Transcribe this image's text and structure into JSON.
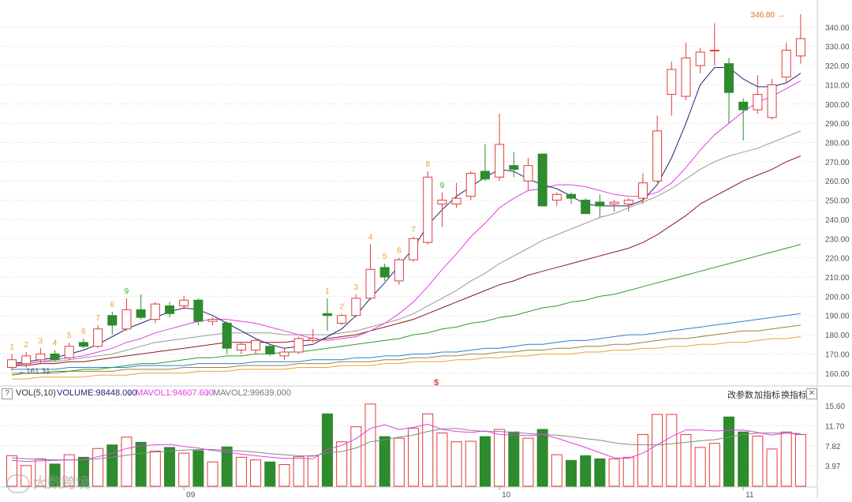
{
  "colors": {
    "up": "#e03c3c",
    "down": "#2e8b2e",
    "ma5": "#23237a",
    "ma10": "#e040e0",
    "ma20": "#999999",
    "ma30": "#8b1a1a",
    "ma60": "#2e9b2e",
    "ma120": "#2f7fd0",
    "ma250": "#a08040",
    "ma_long": "#f0a030",
    "td_up": "#f0a030",
    "td_down": "#22bb22",
    "grid": "#e6e6e6",
    "axis_text": "#555555",
    "vol_ma5": "#e040e0",
    "vol_ma10": "#888888"
  },
  "price_axis": {
    "ticks": [
      "340.00",
      "330.00",
      "320.00",
      "310.00",
      "300.00",
      "290.00",
      "280.00",
      "270.00",
      "260.00",
      "250.00",
      "240.00",
      "230.00",
      "220.00",
      "210.00",
      "200.00",
      "190.00",
      "180.00",
      "170.00",
      "160.00"
    ]
  },
  "vol_axis": {
    "ticks": [
      "15.60",
      "11.70",
      "7.82",
      "3.97"
    ]
  },
  "x_axis": {
    "labels": [
      "09",
      "10",
      "11"
    ]
  },
  "annotations": {
    "high_label": "346.80 →",
    "low_label": "←161.31",
    "marker": "$"
  },
  "vol_header": {
    "title": "VOL(5,10)",
    "volume": "VOLUME:98448.000",
    "mavol1": "MAVOL1:94607.600",
    "mavol2": "MAVOL2:99639.000",
    "btn_params": "改参数",
    "btn_add": "加指标",
    "btn_switch": "换指标",
    "btn_close": "✕",
    "btn_help": "?"
  },
  "watermark": "大数跨境",
  "chart_data": {
    "type": "candlestick",
    "ylim": [
      155,
      350
    ],
    "vol_ylim": [
      0,
      16.5
    ],
    "candles": [
      {
        "o": 163,
        "h": 170,
        "l": 161.31,
        "c": 167
      },
      {
        "o": 165,
        "h": 171,
        "l": 163,
        "c": 169
      },
      {
        "o": 167,
        "h": 173,
        "l": 165,
        "c": 170
      },
      {
        "o": 170,
        "h": 172,
        "l": 166,
        "c": 167
      },
      {
        "o": 168,
        "h": 176,
        "l": 167,
        "c": 174
      },
      {
        "o": 176,
        "h": 178,
        "l": 173,
        "c": 174
      },
      {
        "o": 174,
        "h": 185,
        "l": 173,
        "c": 183
      },
      {
        "o": 190,
        "h": 192,
        "l": 180,
        "c": 185
      },
      {
        "o": 183,
        "h": 199,
        "l": 182,
        "c": 193
      },
      {
        "o": 193,
        "h": 201,
        "l": 188,
        "c": 189
      },
      {
        "o": 188,
        "h": 197,
        "l": 186,
        "c": 196
      },
      {
        "o": 195,
        "h": 197,
        "l": 189,
        "c": 191
      },
      {
        "o": 195,
        "h": 200,
        "l": 193,
        "c": 198
      },
      {
        "o": 198,
        "h": 199,
        "l": 185,
        "c": 187
      },
      {
        "o": 187,
        "h": 189,
        "l": 185,
        "c": 188
      },
      {
        "o": 186,
        "h": 187,
        "l": 170,
        "c": 173
      },
      {
        "o": 172,
        "h": 176,
        "l": 170,
        "c": 175
      },
      {
        "o": 172,
        "h": 178,
        "l": 170,
        "c": 177
      },
      {
        "o": 174,
        "h": 175,
        "l": 169,
        "c": 170
      },
      {
        "o": 169,
        "h": 173,
        "l": 167,
        "c": 171
      },
      {
        "o": 171,
        "h": 179,
        "l": 170,
        "c": 178
      },
      {
        "o": 177,
        "h": 183,
        "l": 176,
        "c": 178
      },
      {
        "o": 191,
        "h": 199,
        "l": 182,
        "c": 190
      },
      {
        "o": 186,
        "h": 191,
        "l": 185,
        "c": 190
      },
      {
        "o": 190,
        "h": 201,
        "l": 189,
        "c": 199
      },
      {
        "o": 199,
        "h": 227,
        "l": 198,
        "c": 214
      },
      {
        "o": 215,
        "h": 217,
        "l": 208,
        "c": 210
      },
      {
        "o": 208,
        "h": 220,
        "l": 206,
        "c": 219
      },
      {
        "o": 219,
        "h": 231,
        "l": 218,
        "c": 230
      },
      {
        "o": 228,
        "h": 265,
        "l": 227,
        "c": 262
      },
      {
        "o": 248,
        "h": 254,
        "l": 236,
        "c": 250
      },
      {
        "o": 248,
        "h": 259,
        "l": 246,
        "c": 251
      },
      {
        "o": 252,
        "h": 265,
        "l": 250,
        "c": 264
      },
      {
        "o": 265,
        "h": 279,
        "l": 260,
        "c": 261
      },
      {
        "o": 262,
        "h": 295,
        "l": 260,
        "c": 279
      },
      {
        "o": 268,
        "h": 275,
        "l": 262,
        "c": 266
      },
      {
        "o": 260,
        "h": 272,
        "l": 255,
        "c": 268
      },
      {
        "o": 274,
        "h": 274,
        "l": 247,
        "c": 247
      },
      {
        "o": 250,
        "h": 254,
        "l": 247,
        "c": 253
      },
      {
        "o": 253,
        "h": 254,
        "l": 248,
        "c": 251
      },
      {
        "o": 250,
        "h": 251,
        "l": 243,
        "c": 243
      },
      {
        "o": 249,
        "h": 253,
        "l": 241,
        "c": 247
      },
      {
        "o": 248,
        "h": 250,
        "l": 244,
        "c": 249
      },
      {
        "o": 248,
        "h": 251,
        "l": 244,
        "c": 250
      },
      {
        "o": 251,
        "h": 264,
        "l": 248,
        "c": 259
      },
      {
        "o": 260,
        "h": 294,
        "l": 259,
        "c": 286
      },
      {
        "o": 305,
        "h": 322,
        "l": 294,
        "c": 318
      },
      {
        "o": 304,
        "h": 332,
        "l": 302,
        "c": 324
      },
      {
        "o": 320,
        "h": 329,
        "l": 316,
        "c": 327
      },
      {
        "o": 328,
        "h": 342,
        "l": 320,
        "c": 328
      },
      {
        "o": 321,
        "h": 324,
        "l": 290,
        "c": 306
      },
      {
        "o": 301,
        "h": 303,
        "l": 281,
        "c": 297
      },
      {
        "o": 297,
        "h": 315,
        "l": 295,
        "c": 305
      },
      {
        "o": 293,
        "h": 313,
        "l": 292,
        "c": 310
      },
      {
        "o": 314,
        "h": 332,
        "l": 311,
        "c": 328
      },
      {
        "o": 325,
        "h": 346.8,
        "l": 321,
        "c": 334
      }
    ],
    "volumes": [
      5.9,
      4.0,
      5.3,
      4.3,
      6.1,
      5.6,
      7.3,
      8.0,
      9.5,
      8.5,
      6.8,
      7.5,
      6.4,
      6.9,
      4.7,
      7.6,
      5.6,
      5.1,
      4.7,
      4.2,
      5.7,
      5.9,
      14.0,
      8.6,
      11.5,
      15.9,
      9.6,
      9.3,
      11.2,
      14.0,
      10.3,
      8.6,
      8.7,
      9.6,
      11.0,
      10.5,
      9.3,
      11.0,
      6.1,
      5.0,
      5.9,
      5.3,
      5.3,
      5.6,
      10.0,
      13.9,
      13.9,
      10.0,
      7.5,
      8.3,
      13.4,
      10.5,
      9.7,
      7.2,
      10.5,
      10.0
    ],
    "td_labels": [
      {
        "i": 0,
        "t": "1",
        "d": "up"
      },
      {
        "i": 1,
        "t": "2",
        "d": "up"
      },
      {
        "i": 2,
        "t": "3",
        "d": "up"
      },
      {
        "i": 3,
        "t": "4",
        "d": "up"
      },
      {
        "i": 4,
        "t": "5",
        "d": "up"
      },
      {
        "i": 5,
        "t": "6",
        "d": "up"
      },
      {
        "i": 6,
        "t": "7",
        "d": "up"
      },
      {
        "i": 7,
        "t": "8",
        "d": "up"
      },
      {
        "i": 8,
        "t": "9",
        "d": "down"
      },
      {
        "i": 22,
        "t": "1",
        "d": "up"
      },
      {
        "i": 23,
        "t": "2",
        "d": "up"
      },
      {
        "i": 24,
        "t": "3",
        "d": "up"
      },
      {
        "i": 25,
        "t": "4",
        "d": "up"
      },
      {
        "i": 26,
        "t": "5",
        "d": "up"
      },
      {
        "i": 27,
        "t": "6",
        "d": "up"
      },
      {
        "i": 28,
        "t": "7",
        "d": "up"
      },
      {
        "i": 29,
        "t": "8",
        "d": "up"
      },
      {
        "i": 30,
        "t": "9",
        "d": "down"
      }
    ],
    "ma5": [
      165,
      166,
      167,
      168,
      170,
      172,
      175,
      179,
      183,
      186,
      189,
      192,
      194,
      193,
      190,
      186,
      182,
      178,
      175,
      173,
      174,
      175,
      179,
      183,
      190,
      199,
      207,
      216,
      225,
      237,
      245,
      252,
      257,
      262,
      266,
      265,
      261,
      258,
      256,
      252,
      248,
      247,
      247,
      247,
      250,
      258,
      272,
      290,
      310,
      319,
      319,
      313,
      309,
      309,
      311,
      316
    ],
    "ma10": [
      164,
      165,
      166,
      167,
      168,
      169,
      171,
      173,
      176,
      178,
      181,
      183,
      185,
      187,
      188,
      188,
      187,
      186,
      184,
      182,
      180,
      178,
      177,
      178,
      179,
      182,
      186,
      191,
      197,
      205,
      214,
      222,
      231,
      238,
      246,
      251,
      255,
      256,
      258,
      258,
      257,
      255,
      253,
      252,
      252,
      254,
      259,
      267,
      276,
      284,
      290,
      296,
      301,
      304,
      308,
      312
    ],
    "ma20": [
      165,
      165,
      166,
      166,
      167,
      168,
      169,
      170,
      172,
      174,
      176,
      177,
      178,
      179,
      180,
      181,
      181,
      181,
      181,
      180,
      180,
      180,
      180,
      181,
      182,
      184,
      186,
      188,
      191,
      195,
      199,
      203,
      208,
      212,
      217,
      221,
      225,
      229,
      232,
      235,
      238,
      241,
      243,
      246,
      249,
      252,
      256,
      261,
      266,
      270,
      273,
      275,
      277,
      280,
      283,
      286
    ],
    "ma30": [
      164,
      164,
      165,
      165,
      166,
      166,
      167,
      168,
      169,
      170,
      171,
      172,
      173,
      174,
      175,
      176,
      176,
      176,
      176,
      176,
      177,
      177,
      178,
      179,
      180,
      182,
      184,
      186,
      188,
      191,
      194,
      197,
      200,
      203,
      206,
      208,
      211,
      213,
      215,
      217,
      219,
      221,
      223,
      225,
      228,
      232,
      237,
      242,
      248,
      252,
      256,
      260,
      263,
      266,
      270,
      273
    ],
    "ma60": [
      159,
      160,
      160,
      161,
      161,
      162,
      162,
      163,
      164,
      165,
      165,
      166,
      167,
      168,
      168,
      169,
      169,
      170,
      170,
      171,
      171,
      172,
      173,
      174,
      175,
      176,
      177,
      178,
      180,
      181,
      183,
      184,
      186,
      187,
      189,
      190,
      192,
      194,
      195,
      197,
      198,
      200,
      201,
      203,
      205,
      207,
      209,
      211,
      213,
      215,
      217,
      219,
      221,
      223,
      225,
      227
    ],
    "ma120": [
      162,
      162,
      162,
      162,
      163,
      163,
      163,
      163,
      163,
      164,
      164,
      164,
      164,
      165,
      165,
      165,
      165,
      166,
      166,
      166,
      166,
      167,
      167,
      167,
      168,
      168,
      169,
      169,
      170,
      170,
      171,
      171,
      172,
      173,
      173,
      174,
      175,
      175,
      176,
      177,
      177,
      178,
      179,
      180,
      180,
      181,
      182,
      183,
      184,
      185,
      186,
      187,
      188,
      189,
      190,
      191
    ],
    "ma250": [
      160,
      160,
      160,
      160,
      161,
      161,
      161,
      161,
      162,
      162,
      162,
      162,
      163,
      163,
      163,
      163,
      164,
      164,
      164,
      164,
      165,
      165,
      165,
      166,
      166,
      166,
      167,
      167,
      168,
      168,
      169,
      169,
      170,
      170,
      171,
      171,
      172,
      172,
      173,
      173,
      174,
      174,
      175,
      175,
      176,
      177,
      178,
      178,
      179,
      180,
      181,
      182,
      182,
      183,
      184,
      185
    ],
    "ma_long": [
      157,
      157,
      158,
      158,
      158,
      158,
      159,
      159,
      159,
      160,
      160,
      160,
      160,
      161,
      161,
      161,
      162,
      162,
      162,
      162,
      163,
      163,
      163,
      164,
      164,
      164,
      165,
      165,
      166,
      166,
      166,
      167,
      167,
      168,
      168,
      169,
      169,
      170,
      170,
      170,
      171,
      171,
      172,
      172,
      173,
      173,
      174,
      174,
      175,
      175,
      176,
      176,
      177,
      178,
      178,
      179
    ],
    "vol_ma5": [
      5.0,
      4.8,
      4.9,
      5.0,
      5.1,
      5.1,
      5.7,
      6.4,
      7.3,
      7.8,
      8.0,
      8.1,
      7.7,
      7.4,
      6.9,
      6.6,
      6.2,
      5.9,
      5.6,
      5.4,
      5.4,
      5.3,
      7.1,
      7.9,
      9.2,
      11.2,
      11.9,
      11.0,
      11.4,
      12.0,
      11.0,
      10.6,
      10.4,
      10.7,
      10.0,
      9.9,
      9.8,
      10.0,
      9.3,
      8.4,
      7.5,
      6.5,
      5.5,
      5.4,
      6.4,
      8.0,
      9.6,
      10.9,
      10.9,
      10.7,
      10.8,
      10.9,
      10.4,
      9.9,
      10.3,
      10.0
    ],
    "vol_ma10": [
      5.5,
      5.3,
      5.2,
      5.1,
      5.1,
      5.1,
      5.3,
      5.6,
      6.0,
      6.4,
      6.6,
      6.8,
      7.0,
      7.1,
      7.1,
      7.0,
      6.8,
      6.6,
      6.3,
      6.1,
      5.9,
      5.8,
      6.5,
      6.7,
      7.4,
      8.6,
      9.0,
      9.5,
      9.9,
      10.6,
      11.1,
      11.2,
      10.8,
      10.6,
      10.6,
      10.4,
      10.2,
      10.0,
      9.9,
      9.6,
      9.2,
      8.9,
      8.4,
      8.1,
      8.0,
      8.0,
      8.2,
      8.5,
      8.8,
      9.0,
      9.5,
      10.0,
      10.3,
      10.3,
      10.3,
      10.2
    ]
  }
}
